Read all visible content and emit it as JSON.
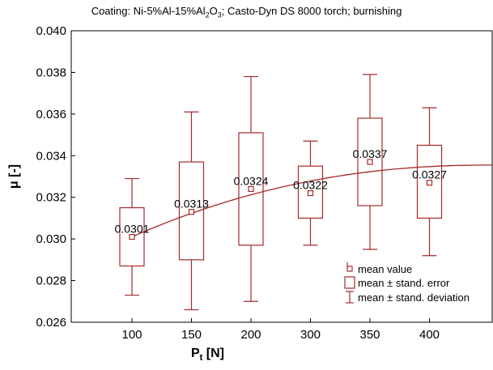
{
  "chart_data": {
    "type": "box",
    "title_prefix": "Coating: Ni-5%Al-15%Al",
    "title_sub": "2",
    "title_mid": "O",
    "title_sub2": "3",
    "title_suffix": ";  Casto-Dyn DS 8000 torch; burnishing",
    "xlabel_main": "P",
    "xlabel_sub": "t",
    "xlabel_unit": " [N]",
    "ylabel": "μ [-]",
    "ylim": [
      0.026,
      0.04
    ],
    "yticks": [
      "0.026",
      "0.028",
      "0.030",
      "0.032",
      "0.034",
      "0.036",
      "0.038",
      "0.040"
    ],
    "categories": [
      "100",
      "150",
      "200",
      "300",
      "350",
      "400"
    ],
    "mean": [
      0.0301,
      0.0313,
      0.0324,
      0.0322,
      0.0337,
      0.0327
    ],
    "mean_labels": [
      "0.0301",
      "0.0313",
      "0.0324",
      "0.0322",
      "0.0337",
      "0.0327"
    ],
    "se_low": [
      0.0287,
      0.029,
      0.0297,
      0.031,
      0.0316,
      0.031
    ],
    "se_high": [
      0.0315,
      0.0337,
      0.0351,
      0.0335,
      0.0358,
      0.0345
    ],
    "sd_low": [
      0.0273,
      0.0266,
      0.027,
      0.0297,
      0.0295,
      0.0292
    ],
    "sd_high": [
      0.0329,
      0.0361,
      0.0378,
      0.0347,
      0.0379,
      0.0363
    ],
    "trend_curve": {
      "x_start": "100",
      "y_start": 0.0301,
      "y_end_at_right_edge": 0.03355
    },
    "legend": [
      "mean value",
      "mean  ±  stand. error",
      "mean ± stand. deviation"
    ],
    "legend_position": "bottom-right",
    "grid": false,
    "color": "#a52a2a"
  }
}
